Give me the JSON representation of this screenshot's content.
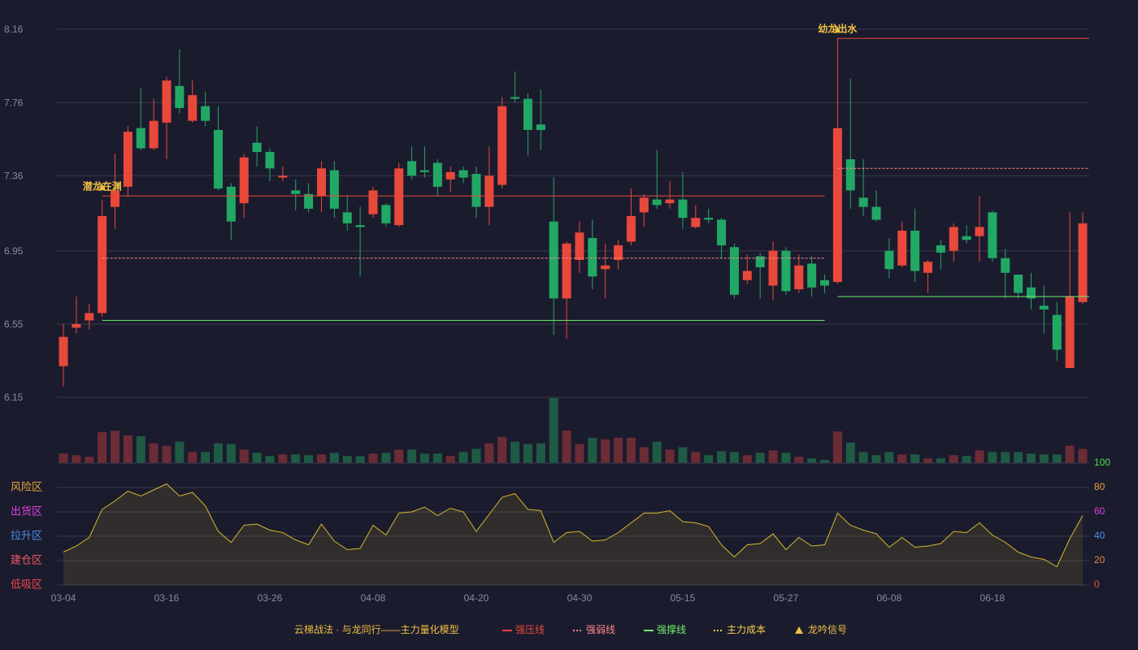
{
  "chart_data": [
    {
      "type": "candlestick",
      "categories": [
        "03-04",
        null,
        null,
        null,
        null,
        null,
        null,
        null,
        "03-16",
        null,
        null,
        null,
        null,
        null,
        null,
        null,
        "03-26",
        null,
        null,
        null,
        null,
        null,
        null,
        null,
        "04-08",
        null,
        null,
        null,
        null,
        null,
        null,
        null,
        "04-20",
        null,
        null,
        null,
        null,
        null,
        null,
        null,
        "04-30",
        null,
        null,
        null,
        null,
        null,
        null,
        null,
        "05-15",
        null,
        null,
        null,
        null,
        null,
        null,
        null,
        "05-27",
        null,
        null,
        null,
        null,
        null,
        null,
        null,
        "06-08",
        null,
        null,
        null,
        null,
        null,
        null,
        null,
        "06-18",
        null,
        null,
        null,
        null,
        null,
        null,
        null
      ],
      "open": [
        6.32,
        6.53,
        6.57,
        6.61,
        7.19,
        7.3,
        7.62,
        7.51,
        7.65,
        7.85,
        7.66,
        7.74,
        7.61,
        7.3,
        7.21,
        7.54,
        7.49,
        7.35,
        7.28,
        7.26,
        7.25,
        7.39,
        7.16,
        7.09,
        7.15,
        7.2,
        7.09,
        7.44,
        7.39,
        7.43,
        7.34,
        7.39,
        7.37,
        7.19,
        7.31,
        7.79,
        7.78,
        7.64,
        7.11,
        6.69,
        6.9,
        7.02,
        6.85,
        6.9,
        7.0,
        7.16,
        7.23,
        7.21,
        7.23,
        7.08,
        7.13,
        7.12,
        6.97,
        6.79,
        6.92,
        6.76,
        6.95,
        6.74,
        6.88,
        6.79,
        6.78,
        7.45,
        7.24,
        7.19,
        6.95,
        6.87,
        7.06,
        6.83,
        6.98,
        6.95,
        7.03,
        7.03,
        7.16,
        6.91,
        6.82,
        6.75,
        6.65,
        6.6,
        6.31,
        6.67
      ],
      "high": [
        6.55,
        6.7,
        6.66,
        7.23,
        7.48,
        7.63,
        7.84,
        7.78,
        7.9,
        8.05,
        7.88,
        7.82,
        7.74,
        7.32,
        7.48,
        7.63,
        7.51,
        7.41,
        7.34,
        7.32,
        7.44,
        7.44,
        7.25,
        7.19,
        7.3,
        7.21,
        7.43,
        7.52,
        7.52,
        7.45,
        7.41,
        7.41,
        7.41,
        7.52,
        7.79,
        7.93,
        7.81,
        7.83,
        7.35,
        7.0,
        7.11,
        7.12,
        6.99,
        7.01,
        7.29,
        7.26,
        7.5,
        7.33,
        7.38,
        7.2,
        7.18,
        7.13,
        6.99,
        6.93,
        6.94,
        7.0,
        6.97,
        6.93,
        6.92,
        6.82,
        8.11,
        7.89,
        7.45,
        7.28,
        7.02,
        7.11,
        7.18,
        6.9,
        7.01,
        7.1,
        7.09,
        7.25,
        7.17,
        6.96,
        6.82,
        6.83,
        6.76,
        6.67,
        7.16,
        7.16
      ],
      "low": [
        6.21,
        6.5,
        6.52,
        6.59,
        7.07,
        7.25,
        7.5,
        7.5,
        7.45,
        7.7,
        7.65,
        7.63,
        7.28,
        7.01,
        7.13,
        7.41,
        7.33,
        7.33,
        7.17,
        7.16,
        7.16,
        7.13,
        7.06,
        6.81,
        7.13,
        7.08,
        7.08,
        7.34,
        7.35,
        7.25,
        7.27,
        7.32,
        7.13,
        7.09,
        7.29,
        7.76,
        7.47,
        7.5,
        6.49,
        6.47,
        6.83,
        6.74,
        6.69,
        6.85,
        6.98,
        7.08,
        7.18,
        7.18,
        7.07,
        7.07,
        7.1,
        6.91,
        6.69,
        6.77,
        6.69,
        6.68,
        6.71,
        6.72,
        6.7,
        6.72,
        6.77,
        7.18,
        7.14,
        7.11,
        6.8,
        6.86,
        6.78,
        6.72,
        6.85,
        6.89,
        6.99,
        6.89,
        6.89,
        6.69,
        6.69,
        6.63,
        6.5,
        6.35,
        6.31,
        6.66
      ],
      "close": [
        6.48,
        6.55,
        6.61,
        7.14,
        7.28,
        7.6,
        7.51,
        7.66,
        7.88,
        7.73,
        7.8,
        7.66,
        7.29,
        7.11,
        7.46,
        7.49,
        7.4,
        7.36,
        7.26,
        7.18,
        7.4,
        7.18,
        7.1,
        7.08,
        7.28,
        7.1,
        7.4,
        7.36,
        7.38,
        7.3,
        7.38,
        7.35,
        7.19,
        7.36,
        7.74,
        7.78,
        7.61,
        7.61,
        6.69,
        6.99,
        7.05,
        6.81,
        6.87,
        6.98,
        7.14,
        7.24,
        7.2,
        7.23,
        7.13,
        7.13,
        7.12,
        6.98,
        6.71,
        6.84,
        6.86,
        6.95,
        6.73,
        6.87,
        6.75,
        6.76,
        7.62,
        7.28,
        7.19,
        7.12,
        6.85,
        7.06,
        6.84,
        6.89,
        6.94,
        7.08,
        7.01,
        7.08,
        6.91,
        6.83,
        6.72,
        6.69,
        6.63,
        6.41,
        6.7,
        7.1
      ],
      "up_color": "#e8493b",
      "down_color": "#22a865",
      "ylim": [
        6.15,
        8.16
      ],
      "yticks": [
        6.15,
        6.55,
        6.95,
        7.36,
        7.76,
        8.16
      ],
      "grid": true,
      "signals": [
        {
          "label": "潜龙在渊",
          "start": 3,
          "end": 59,
          "pressure": 7.25,
          "weak": 6.91,
          "support": 6.57
        },
        {
          "label": "幼龙出水",
          "start": 60,
          "pressure": 8.11,
          "weak": 7.4,
          "support": 6.7
        }
      ],
      "legend": {
        "title": "云梯战法 · 与龙同行——主力量化模型",
        "items": [
          {
            "name": "强压线",
            "color": "#e8493b",
            "style": "solid"
          },
          {
            "name": "强弱线",
            "color": "#ff8a8a",
            "style": "dashed"
          },
          {
            "name": "强撑线",
            "color": "#6cf06c",
            "style": "solid"
          },
          {
            "name": "主力成本",
            "color": "#f5d04a",
            "style": "dashed"
          },
          {
            "name": "龙吟信号",
            "color": "#f0c040",
            "style": "triangle"
          }
        ]
      }
    },
    {
      "type": "bar",
      "values": [
        12,
        10,
        8,
        39,
        41,
        35,
        34,
        25,
        22,
        27,
        14,
        14,
        25,
        24,
        17,
        13,
        9,
        11,
        11,
        10,
        11,
        13,
        9,
        9,
        12,
        13,
        17,
        17,
        12,
        12,
        9,
        14,
        18,
        25,
        33,
        27,
        24,
        25,
        82,
        41,
        24,
        32,
        30,
        32,
        32,
        20,
        27,
        17,
        20,
        14,
        10,
        15,
        14,
        10,
        13,
        16,
        13,
        8,
        6,
        4,
        40,
        26,
        14,
        10,
        14,
        11,
        11,
        6,
        6,
        10,
        9,
        16,
        14,
        14,
        14,
        12,
        11,
        11,
        22,
        18
      ],
      "up_color": "#6b2c35",
      "down_color": "#1f5a45"
    },
    {
      "type": "area",
      "values": [
        27,
        32,
        39,
        62,
        69,
        77,
        73,
        78,
        83,
        73,
        76,
        65,
        44,
        35,
        49,
        50,
        45,
        43,
        37,
        33,
        50,
        36,
        29,
        30,
        49,
        41,
        59,
        60,
        64,
        57,
        63,
        60,
        44,
        58,
        72,
        75,
        62,
        61,
        35,
        43,
        44,
        36,
        37,
        43,
        51,
        59,
        59,
        61,
        52,
        51,
        48,
        33,
        23,
        33,
        34,
        42,
        29,
        39,
        32,
        33,
        59,
        49,
        45,
        42,
        31,
        39,
        31,
        32,
        34,
        44,
        43,
        51,
        41,
        35,
        27,
        23,
        21,
        15,
        38,
        57
      ],
      "color": "#d4b82a",
      "ylim": [
        0,
        100
      ],
      "yticks": [
        0,
        20,
        40,
        60,
        80,
        100
      ],
      "ytick_colors": [
        "#f04848",
        "#e8883a",
        "#4a90e8",
        "#e040e0",
        "#e8a23a",
        "#4ae04a"
      ],
      "zones": [
        {
          "value": 80,
          "label": "风险区",
          "color": "#e8a23a"
        },
        {
          "value": 60,
          "label": "出货区",
          "color": "#e040e0"
        },
        {
          "value": 40,
          "label": "拉升区",
          "color": "#4a90e8"
        },
        {
          "value": 20,
          "label": "建仓区",
          "color": "#f05a6a"
        },
        {
          "value": 0,
          "label": "低吸区",
          "color": "#f04848"
        }
      ]
    }
  ]
}
